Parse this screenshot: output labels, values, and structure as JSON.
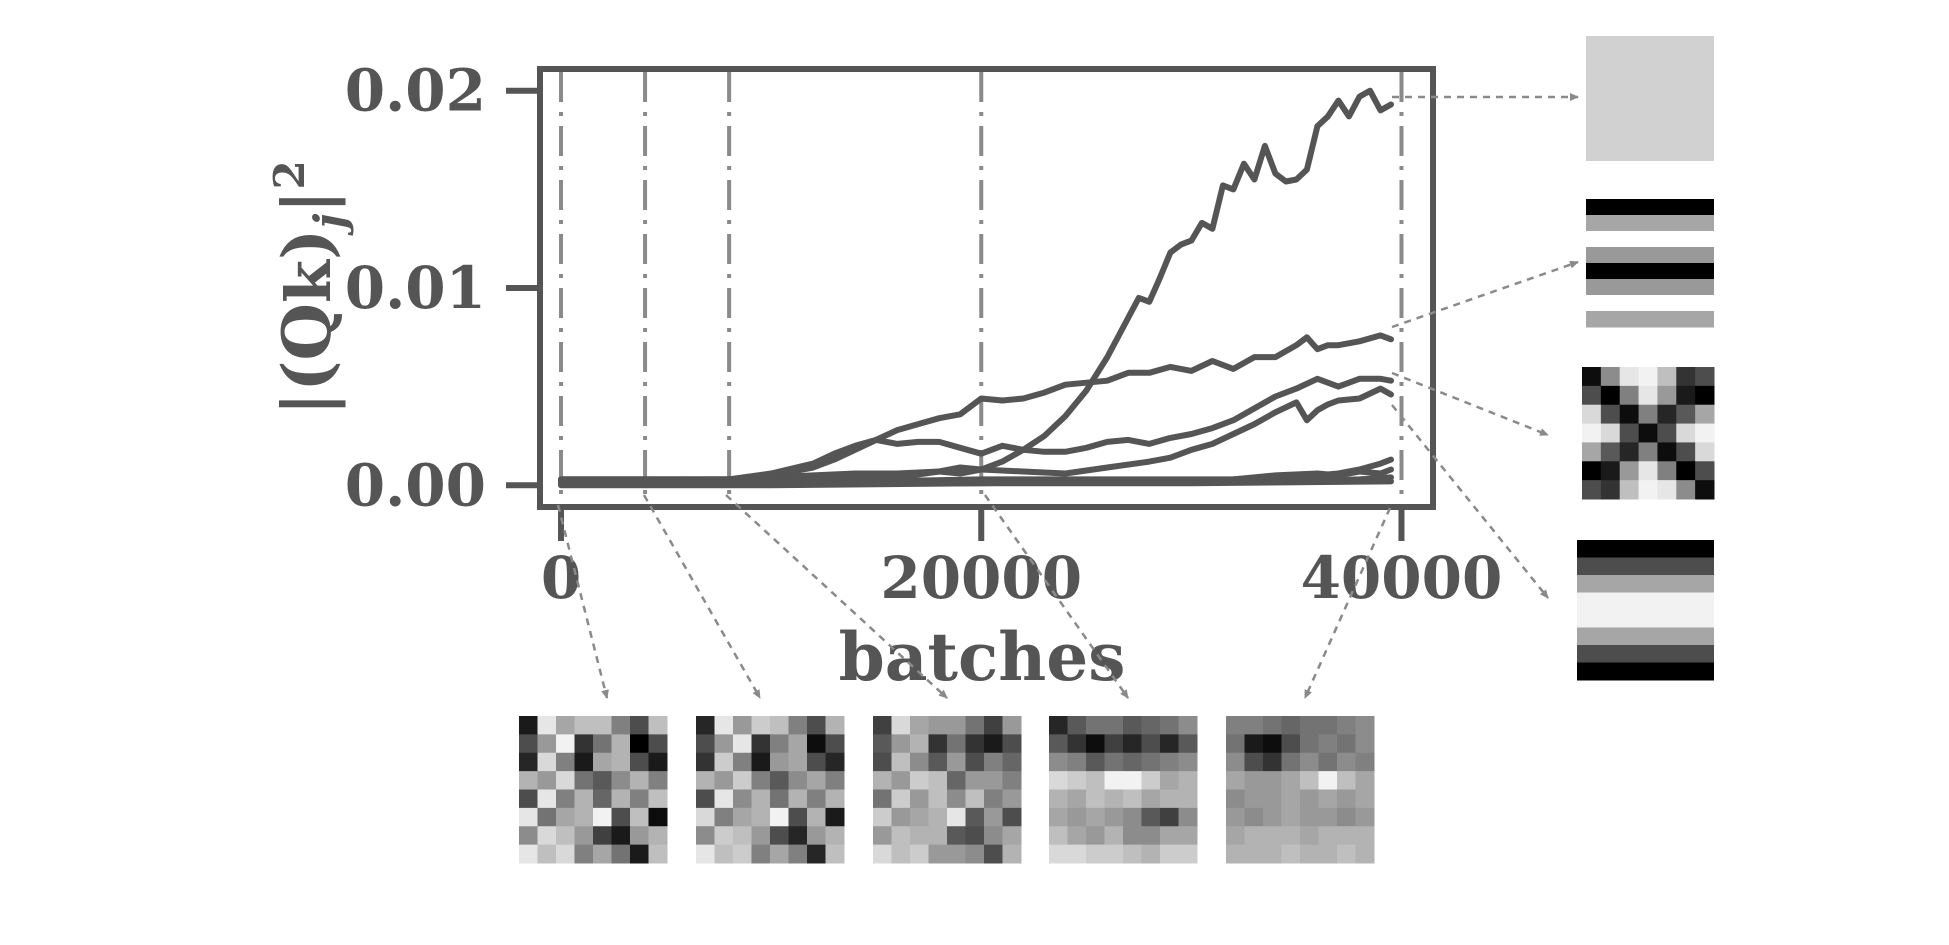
{
  "chart_data": {
    "type": "line",
    "xlabel": "batches",
    "ylabel": "|(Qk)_j|^2",
    "ylabel_parts": {
      "open": "|(Q",
      "k": "k",
      "close": ")",
      "sub": "j",
      "bar": "|",
      "sup": "2"
    },
    "xlim": [
      -1000,
      41500
    ],
    "ylim": [
      -0.0011,
      0.0211
    ],
    "x_ticks": [
      0,
      20000,
      40000
    ],
    "x_tick_labels": [
      "0",
      "20000",
      "40000"
    ],
    "y_ticks": [
      0.0,
      0.01,
      0.02
    ],
    "y_tick_labels": [
      "0.00",
      "0.01",
      "0.02"
    ],
    "grid": false,
    "legend": "none",
    "line_color": "#555555",
    "vlines_color": "#8a8a8a",
    "vlines_x": [
      0,
      4000,
      8000,
      20000,
      40000
    ],
    "series": [
      {
        "x": [
          0,
          4000,
          8000,
          10000,
          12000,
          14000,
          16000,
          18000,
          19000,
          20000,
          21000,
          22000,
          23000,
          24000,
          25000,
          26000,
          27000,
          27500,
          28000,
          28500,
          29000,
          29500,
          30000,
          30500,
          31000,
          31500,
          32000,
          32500,
          33000,
          33500,
          34000,
          34500,
          35000,
          35500,
          36000,
          36500,
          37000,
          37500,
          38000,
          38500,
          39000,
          39500
        ],
        "y": [
          0.0003,
          0.0003,
          0.0003,
          0.0004,
          0.0005,
          0.0006,
          0.0006,
          0.0007,
          0.0006,
          0.0008,
          0.0012,
          0.0018,
          0.0025,
          0.0035,
          0.0048,
          0.0065,
          0.0085,
          0.0095,
          0.0093,
          0.0105,
          0.0118,
          0.0122,
          0.0124,
          0.0133,
          0.013,
          0.0152,
          0.015,
          0.0163,
          0.0155,
          0.0172,
          0.0158,
          0.0154,
          0.0155,
          0.016,
          0.0182,
          0.0187,
          0.0195,
          0.0187,
          0.0197,
          0.02,
          0.019,
          0.0193
        ]
      },
      {
        "x": [
          0,
          4000,
          8000,
          10000,
          12000,
          13000,
          14000,
          15000,
          16000,
          17000,
          18000,
          19000,
          20000,
          21000,
          22000,
          23000,
          24000,
          25000,
          26000,
          27000,
          28000,
          29000,
          30000,
          31000,
          32000,
          33000,
          34000,
          35000,
          35500,
          36000,
          36500,
          37000,
          38000,
          39000,
          39500
        ],
        "y": [
          0.0003,
          0.0003,
          0.0003,
          0.0005,
          0.0009,
          0.0013,
          0.0018,
          0.0023,
          0.0028,
          0.0031,
          0.0034,
          0.0036,
          0.0044,
          0.0043,
          0.0044,
          0.0047,
          0.0051,
          0.0052,
          0.0053,
          0.0057,
          0.0057,
          0.006,
          0.0058,
          0.0063,
          0.0059,
          0.0065,
          0.0065,
          0.0071,
          0.0075,
          0.0069,
          0.0071,
          0.0071,
          0.0073,
          0.0076,
          0.0074
        ]
      },
      {
        "x": [
          0,
          4000,
          8000,
          10000,
          12000,
          13000,
          14000,
          15000,
          16000,
          17000,
          18000,
          19000,
          20000,
          21000,
          22000,
          23000,
          24000,
          25000,
          26000,
          27000,
          28000,
          29000,
          30000,
          31000,
          32000,
          33000,
          34000,
          35000,
          36000,
          37000,
          38000,
          39000,
          39500
        ],
        "y": [
          0.0003,
          0.0003,
          0.0003,
          0.0006,
          0.0011,
          0.0016,
          0.002,
          0.0023,
          0.0021,
          0.0022,
          0.0022,
          0.0019,
          0.0016,
          0.002,
          0.0018,
          0.0017,
          0.0017,
          0.0019,
          0.0022,
          0.0023,
          0.0021,
          0.0024,
          0.0026,
          0.0029,
          0.0033,
          0.0039,
          0.0045,
          0.0049,
          0.0054,
          0.005,
          0.0054,
          0.0054,
          0.0053
        ]
      },
      {
        "x": [
          0,
          4000,
          8000,
          12000,
          16000,
          18000,
          19000,
          20000,
          22000,
          24000,
          26000,
          28000,
          29000,
          30000,
          31000,
          32000,
          33000,
          34000,
          35000,
          35500,
          36000,
          36500,
          37000,
          38000,
          39000,
          39500
        ],
        "y": [
          0.0002,
          0.0002,
          0.0003,
          0.0003,
          0.0004,
          0.0007,
          0.0009,
          0.0008,
          0.0007,
          0.0006,
          0.0009,
          0.0012,
          0.0014,
          0.0018,
          0.0021,
          0.0026,
          0.0031,
          0.0037,
          0.0042,
          0.0033,
          0.0038,
          0.0041,
          0.0043,
          0.0044,
          0.0049,
          0.0046
        ]
      },
      {
        "x": [
          0,
          5000,
          10000,
          15000,
          20000,
          25000,
          30000,
          32000,
          34000,
          36000,
          37000,
          38000,
          39000,
          39500
        ],
        "y": [
          0.0002,
          0.0002,
          0.0002,
          0.0002,
          0.0003,
          0.0003,
          0.0003,
          0.0003,
          0.0004,
          0.0005,
          0.0006,
          0.0008,
          0.0011,
          0.0013
        ]
      },
      {
        "x": [
          0,
          5000,
          10000,
          15000,
          20000,
          25000,
          30000,
          32000,
          34000,
          36000,
          37000,
          38000,
          39000,
          39500
        ],
        "y": [
          0.0001,
          0.0001,
          0.0002,
          0.0002,
          0.0002,
          0.0002,
          0.0002,
          0.0003,
          0.0005,
          0.0006,
          0.0005,
          0.0007,
          0.0006,
          0.0008
        ]
      },
      {
        "x": [
          0,
          5000,
          10000,
          15000,
          20000,
          25000,
          30000,
          35000,
          38000,
          39500
        ],
        "y": [
          0.0001,
          0.0001,
          0.0001,
          0.0001,
          0.0001,
          0.0002,
          0.0002,
          0.0002,
          0.0003,
          0.0004
        ]
      },
      {
        "x": [
          0,
          10000,
          20000,
          30000,
          39500
        ],
        "y": [
          0.0,
          0.0,
          0.0001,
          0.0001,
          0.0002
        ]
      }
    ],
    "mode_patterns_right": [
      {
        "kind": "uniform",
        "levels": [
          0.82
        ]
      },
      {
        "kind": "rows",
        "levels": [
          0.0,
          0.65,
          1.0,
          0.6,
          0.0,
          0.6,
          1.0,
          0.65
        ]
      },
      {
        "kind": "grid",
        "size": 7,
        "levels": [
          [
            0.05,
            0.55,
            0.9,
            0.95,
            0.75,
            0.2,
            0.3
          ],
          [
            0.3,
            0.0,
            0.5,
            0.9,
            0.6,
            0.1,
            0.0
          ],
          [
            0.85,
            0.3,
            0.05,
            0.5,
            0.15,
            0.35,
            0.65
          ],
          [
            0.95,
            0.85,
            0.3,
            0.05,
            0.3,
            0.85,
            0.95
          ],
          [
            0.65,
            0.35,
            0.15,
            0.5,
            0.05,
            0.3,
            0.85
          ],
          [
            0.0,
            0.1,
            0.6,
            0.9,
            0.5,
            0.0,
            0.3
          ],
          [
            0.3,
            0.2,
            0.75,
            0.95,
            0.9,
            0.55,
            0.05
          ]
        ]
      },
      {
        "kind": "rows",
        "levels": [
          0.0,
          0.3,
          0.65,
          0.95,
          0.95,
          0.65,
          0.3,
          0.0
        ]
      }
    ],
    "weight_snapshots_bottom": [
      {
        "x": 0,
        "size": 8,
        "levels": [
          [
            0.1,
            0.9,
            0.65,
            0.75,
            0.75,
            0.5,
            0.3,
            0.75
          ],
          [
            0.3,
            0.6,
            0.95,
            0.2,
            0.45,
            0.7,
            0.0,
            0.3
          ],
          [
            0.15,
            0.85,
            0.5,
            0.1,
            0.65,
            0.7,
            0.3,
            0.1
          ],
          [
            0.7,
            0.6,
            0.85,
            0.45,
            0.35,
            0.55,
            0.7,
            0.5
          ],
          [
            0.3,
            0.9,
            0.5,
            0.7,
            0.4,
            0.7,
            0.5,
            0.75
          ],
          [
            0.9,
            0.45,
            0.65,
            0.7,
            0.95,
            0.3,
            0.75,
            0.05
          ],
          [
            0.55,
            0.85,
            0.75,
            0.6,
            0.25,
            0.1,
            0.6,
            0.7
          ],
          [
            0.9,
            0.75,
            0.85,
            0.5,
            0.65,
            0.45,
            0.1,
            0.75
          ]
        ]
      },
      {
        "x": 4000,
        "size": 8,
        "levels": [
          [
            0.15,
            0.9,
            0.6,
            0.8,
            0.75,
            0.5,
            0.3,
            0.7
          ],
          [
            0.3,
            0.6,
            0.9,
            0.2,
            0.5,
            0.65,
            0.05,
            0.3
          ],
          [
            0.2,
            0.8,
            0.5,
            0.1,
            0.6,
            0.65,
            0.3,
            0.15
          ],
          [
            0.7,
            0.6,
            0.8,
            0.5,
            0.35,
            0.55,
            0.65,
            0.5
          ],
          [
            0.3,
            0.9,
            0.55,
            0.7,
            0.45,
            0.7,
            0.5,
            0.7
          ],
          [
            0.85,
            0.5,
            0.65,
            0.7,
            0.95,
            0.3,
            0.7,
            0.1
          ],
          [
            0.55,
            0.8,
            0.75,
            0.6,
            0.3,
            0.15,
            0.6,
            0.7
          ],
          [
            0.9,
            0.75,
            0.8,
            0.5,
            0.65,
            0.5,
            0.15,
            0.75
          ]
        ]
      },
      {
        "x": 8000,
        "size": 8,
        "levels": [
          [
            0.25,
            0.85,
            0.65,
            0.6,
            0.6,
            0.45,
            0.25,
            0.6
          ],
          [
            0.35,
            0.6,
            0.7,
            0.2,
            0.45,
            0.2,
            0.1,
            0.3
          ],
          [
            0.3,
            0.75,
            0.55,
            0.35,
            0.6,
            0.3,
            0.5,
            0.4
          ],
          [
            0.7,
            0.6,
            0.8,
            0.75,
            0.4,
            0.6,
            0.6,
            0.5
          ],
          [
            0.45,
            0.8,
            0.6,
            0.75,
            0.55,
            0.75,
            0.5,
            0.6
          ],
          [
            0.8,
            0.6,
            0.65,
            0.7,
            0.9,
            0.35,
            0.6,
            0.3
          ],
          [
            0.6,
            0.75,
            0.7,
            0.7,
            0.35,
            0.3,
            0.55,
            0.65
          ],
          [
            0.85,
            0.75,
            0.8,
            0.6,
            0.6,
            0.55,
            0.3,
            0.7
          ]
        ]
      },
      {
        "x": 20000,
        "size": 8,
        "levels": [
          [
            0.15,
            0.35,
            0.45,
            0.45,
            0.35,
            0.4,
            0.45,
            0.55
          ],
          [
            0.35,
            0.2,
            0.05,
            0.25,
            0.15,
            0.3,
            0.15,
            0.35
          ],
          [
            0.55,
            0.5,
            0.35,
            0.45,
            0.4,
            0.45,
            0.5,
            0.55
          ],
          [
            0.85,
            0.8,
            0.75,
            0.95,
            0.95,
            0.8,
            0.65,
            0.7
          ],
          [
            0.7,
            0.65,
            0.75,
            0.7,
            0.75,
            0.65,
            0.7,
            0.7
          ],
          [
            0.65,
            0.6,
            0.65,
            0.6,
            0.55,
            0.35,
            0.25,
            0.55
          ],
          [
            0.75,
            0.65,
            0.6,
            0.7,
            0.55,
            0.55,
            0.65,
            0.65
          ],
          [
            0.85,
            0.85,
            0.8,
            0.8,
            0.75,
            0.7,
            0.8,
            0.8
          ]
        ]
      },
      {
        "x": 40000,
        "size": 8,
        "levels": [
          [
            0.5,
            0.5,
            0.45,
            0.4,
            0.45,
            0.45,
            0.5,
            0.55
          ],
          [
            0.45,
            0.1,
            0.05,
            0.3,
            0.45,
            0.5,
            0.45,
            0.55
          ],
          [
            0.55,
            0.3,
            0.2,
            0.45,
            0.55,
            0.45,
            0.55,
            0.5
          ],
          [
            0.65,
            0.6,
            0.6,
            0.65,
            0.75,
            0.95,
            0.75,
            0.65
          ],
          [
            0.55,
            0.6,
            0.6,
            0.65,
            0.6,
            0.65,
            0.6,
            0.65
          ],
          [
            0.6,
            0.55,
            0.6,
            0.65,
            0.6,
            0.6,
            0.55,
            0.6
          ],
          [
            0.65,
            0.7,
            0.7,
            0.7,
            0.65,
            0.7,
            0.7,
            0.7
          ],
          [
            0.7,
            0.7,
            0.7,
            0.75,
            0.7,
            0.7,
            0.75,
            0.7
          ]
        ]
      }
    ],
    "arrow_color": "#8a8a8a"
  }
}
